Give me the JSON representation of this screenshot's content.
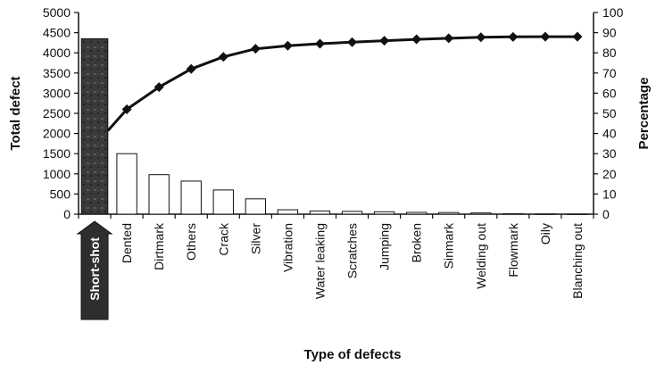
{
  "chart_data": {
    "type": "bar",
    "xlabel": "Type of defects",
    "ylabel_left": "Total defect",
    "ylabel_right": "Percentage",
    "categories": [
      "Short-shot",
      "Dented",
      "Dirtmark",
      "Others",
      "Crack",
      "Silver",
      "Vibration",
      "Water leaking",
      "Scratches",
      "Jumping",
      "Broken",
      "Sinmark",
      "Welding out",
      "Flowmark",
      "Oily",
      "Blanching out"
    ],
    "series": [
      {
        "axis": "left",
        "chart_type": "bar",
        "values": [
          4350,
          1500,
          980,
          820,
          600,
          380,
          110,
          80,
          70,
          60,
          45,
          40,
          30,
          10,
          5,
          3
        ]
      },
      {
        "axis": "right",
        "chart_type": "line",
        "values": [
          null,
          52,
          63,
          72,
          78,
          82,
          83.5,
          84.5,
          85.3,
          86,
          86.7,
          87.2,
          87.7,
          87.9,
          88,
          88
        ]
      }
    ],
    "left_ylim": [
      0,
      5000
    ],
    "left_yticks": [
      0,
      500,
      1000,
      1500,
      2000,
      2500,
      3000,
      3500,
      4000,
      4500,
      5000
    ],
    "right_ylim": [
      0,
      100
    ],
    "right_yticks": [
      0,
      10,
      20,
      30,
      40,
      50,
      60,
      70,
      80,
      90,
      100
    ],
    "highlighted_category": "Short-shot",
    "colors": {
      "highlight_bar": "#3a3a3a",
      "bars": "#ffffff",
      "line": "#111111"
    }
  }
}
